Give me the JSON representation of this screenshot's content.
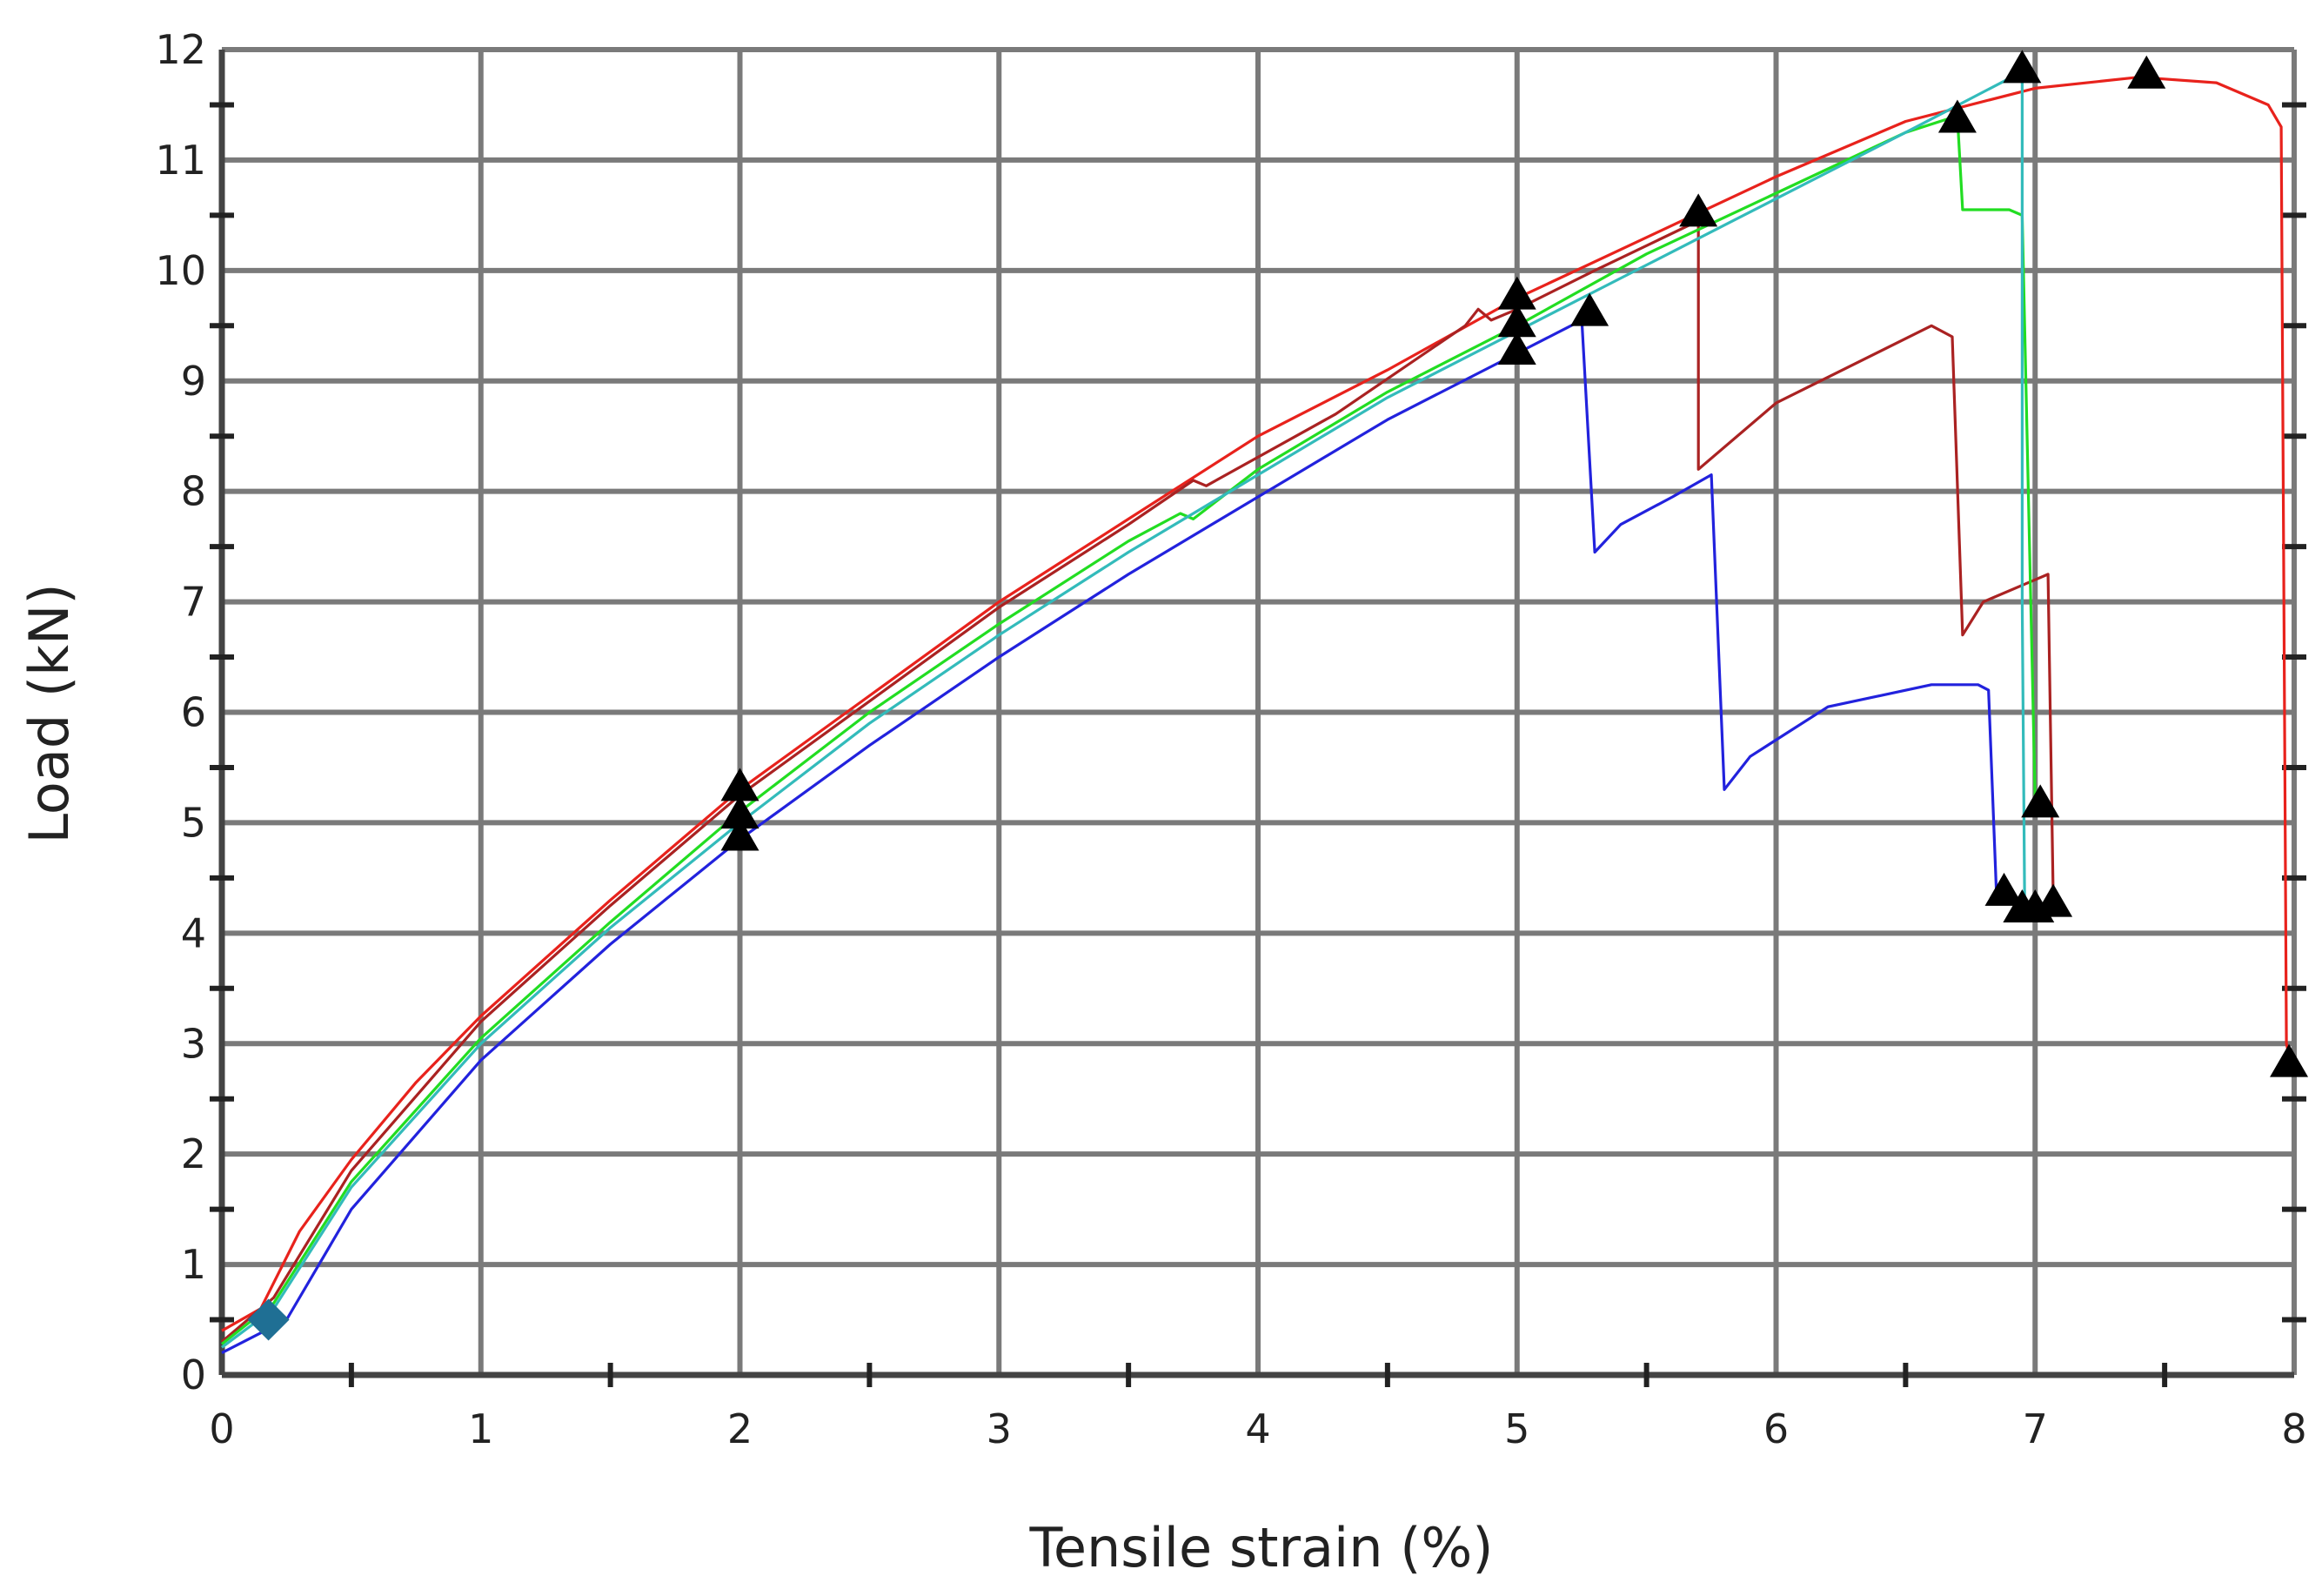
{
  "chart_data": {
    "type": "line",
    "xlabel": "Tensile strain (%)",
    "ylabel": "Load (kN)",
    "xlim": [
      0,
      8
    ],
    "ylim": [
      0,
      12
    ],
    "x_ticks": [
      0,
      1,
      2,
      3,
      4,
      5,
      6,
      7,
      8
    ],
    "y_ticks": [
      0,
      1,
      2,
      3,
      4,
      5,
      6,
      7,
      8,
      9,
      10,
      11,
      12
    ],
    "grid": true,
    "legend": "none",
    "series": [
      {
        "color": "#e8221c",
        "points": [
          [
            0,
            0.4
          ],
          [
            0.15,
            0.6
          ],
          [
            0.3,
            1.3
          ],
          [
            0.5,
            1.95
          ],
          [
            0.75,
            2.65
          ],
          [
            1,
            3.25
          ],
          [
            1.5,
            4.3
          ],
          [
            2,
            5.3
          ],
          [
            2.5,
            6.15
          ],
          [
            3,
            7.0
          ],
          [
            3.5,
            7.75
          ],
          [
            4,
            8.5
          ],
          [
            4.5,
            9.1
          ],
          [
            5,
            9.75
          ],
          [
            5.5,
            10.3
          ],
          [
            6,
            10.85
          ],
          [
            6.5,
            11.35
          ],
          [
            7,
            11.65
          ],
          [
            7.4,
            11.75
          ],
          [
            7.7,
            11.7
          ],
          [
            7.9,
            11.5
          ],
          [
            7.95,
            11.3
          ],
          [
            7.97,
            3.0
          ],
          [
            7.98,
            2.9
          ]
        ]
      },
      {
        "color": "#aa2222",
        "points": [
          [
            0,
            0.3
          ],
          [
            0.2,
            0.7
          ],
          [
            0.5,
            1.85
          ],
          [
            1,
            3.2
          ],
          [
            1.5,
            4.25
          ],
          [
            2,
            5.25
          ],
          [
            2.5,
            6.1
          ],
          [
            3,
            6.95
          ],
          [
            3.5,
            7.7
          ],
          [
            3.75,
            8.1
          ],
          [
            3.8,
            8.05
          ],
          [
            4.3,
            8.7
          ],
          [
            4.8,
            9.5
          ],
          [
            4.85,
            9.65
          ],
          [
            4.9,
            9.55
          ],
          [
            5,
            9.65
          ],
          [
            5.3,
            10.0
          ],
          [
            5.7,
            10.45
          ],
          [
            5.7,
            8.2
          ],
          [
            6,
            8.8
          ],
          [
            6.6,
            9.5
          ],
          [
            6.68,
            9.4
          ],
          [
            6.72,
            6.7
          ],
          [
            6.8,
            7.0
          ],
          [
            7.0,
            7.2
          ],
          [
            7.05,
            7.25
          ],
          [
            7.07,
            4.3
          ]
        ]
      },
      {
        "color": "#22dd22",
        "points": [
          [
            0,
            0.28
          ],
          [
            0.2,
            0.65
          ],
          [
            0.5,
            1.75
          ],
          [
            1,
            3.05
          ],
          [
            1.5,
            4.1
          ],
          [
            2,
            5.1
          ],
          [
            2.5,
            6.0
          ],
          [
            3,
            6.8
          ],
          [
            3.5,
            7.55
          ],
          [
            3.7,
            7.8
          ],
          [
            3.75,
            7.75
          ],
          [
            4,
            8.2
          ],
          [
            4.5,
            8.9
          ],
          [
            5,
            9.5
          ],
          [
            5.5,
            10.15
          ],
          [
            6,
            10.7
          ],
          [
            6.5,
            11.25
          ],
          [
            6.7,
            11.4
          ],
          [
            6.72,
            10.55
          ],
          [
            6.9,
            10.55
          ],
          [
            6.95,
            10.5
          ],
          [
            7.0,
            5.2
          ]
        ]
      },
      {
        "color": "#33bbbb",
        "points": [
          [
            0,
            0.25
          ],
          [
            0.2,
            0.6
          ],
          [
            0.5,
            1.7
          ],
          [
            1,
            3.0
          ],
          [
            1.5,
            4.05
          ],
          [
            2,
            5.0
          ],
          [
            2.5,
            5.9
          ],
          [
            3,
            6.7
          ],
          [
            3.5,
            7.45
          ],
          [
            4,
            8.15
          ],
          [
            4.5,
            8.85
          ],
          [
            5,
            9.45
          ],
          [
            5.5,
            10.05
          ],
          [
            6,
            10.65
          ],
          [
            6.5,
            11.25
          ],
          [
            6.95,
            11.8
          ],
          [
            6.95,
            7.0
          ],
          [
            6.96,
            4.2
          ]
        ]
      },
      {
        "color": "#2222dd",
        "points": [
          [
            0,
            0.2
          ],
          [
            0.25,
            0.5
          ],
          [
            0.5,
            1.5
          ],
          [
            1,
            2.85
          ],
          [
            1.5,
            3.9
          ],
          [
            2,
            4.85
          ],
          [
            2.5,
            5.7
          ],
          [
            3,
            6.5
          ],
          [
            3.5,
            7.25
          ],
          [
            4,
            7.95
          ],
          [
            4.5,
            8.65
          ],
          [
            5,
            9.25
          ],
          [
            5.25,
            9.55
          ],
          [
            5.3,
            7.45
          ],
          [
            5.4,
            7.7
          ],
          [
            5.6,
            7.95
          ],
          [
            5.75,
            8.15
          ],
          [
            5.8,
            5.3
          ],
          [
            5.9,
            5.6
          ],
          [
            6.2,
            6.05
          ],
          [
            6.6,
            6.25
          ],
          [
            6.78,
            6.25
          ],
          [
            6.82,
            6.2
          ],
          [
            6.85,
            4.4
          ]
        ]
      }
    ],
    "markers": {
      "triangle_color": "#000000",
      "triangles": [
        [
          2,
          4.85
        ],
        [
          2,
          5.05
        ],
        [
          2,
          5.3
        ],
        [
          5,
          9.25
        ],
        [
          5,
          9.5
        ],
        [
          5,
          9.75
        ],
        [
          5.28,
          9.6
        ],
        [
          5.7,
          10.5
        ],
        [
          6.7,
          11.35
        ],
        [
          6.95,
          11.8
        ],
        [
          7.43,
          11.75
        ],
        [
          6.88,
          4.35
        ],
        [
          6.95,
          4.2
        ],
        [
          7.0,
          4.2
        ],
        [
          7.02,
          5.15
        ],
        [
          7.07,
          4.25
        ],
        [
          7.98,
          2.8
        ]
      ],
      "diamond_color": "#1f6f94",
      "diamonds": [
        [
          0.18,
          0.5
        ]
      ]
    }
  }
}
